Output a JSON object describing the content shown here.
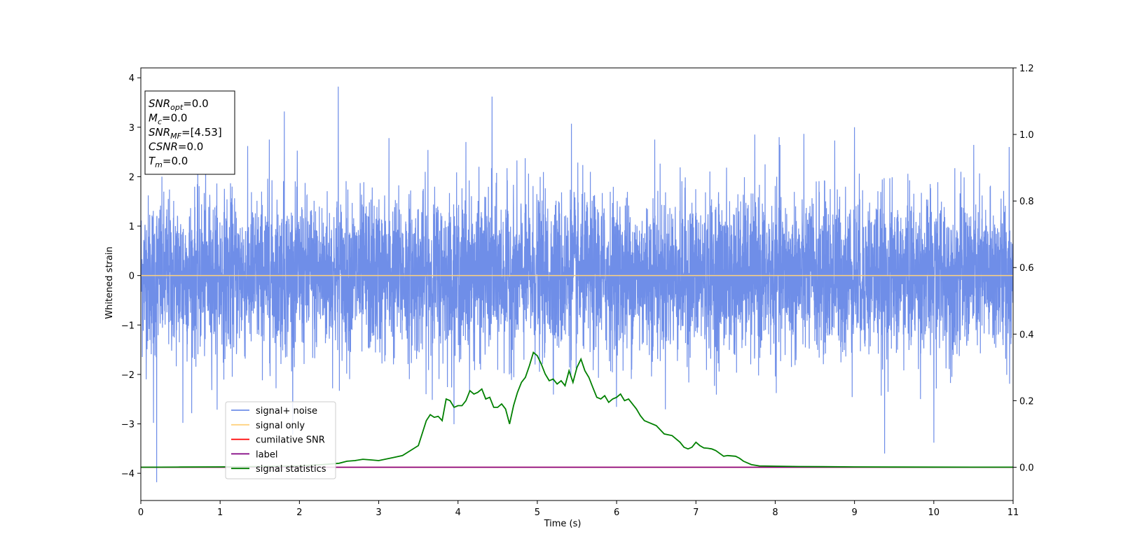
{
  "chart_data": {
    "type": "line",
    "xlabel": "Time (s)",
    "ylabel": "Whitened strain",
    "xlim": [
      0,
      11
    ],
    "ylim": [
      -4.55,
      4.2
    ],
    "y2lim": [
      -0.1,
      1.2
    ],
    "x_ticks": [
      "0",
      "1",
      "2",
      "3",
      "4",
      "5",
      "6",
      "7",
      "8",
      "9",
      "10",
      "11"
    ],
    "y_ticks": [
      "−4",
      "−3",
      "−2",
      "−1",
      "0",
      "1",
      "2",
      "3",
      "4"
    ],
    "y2_ticks": [
      "0.0",
      "0.2",
      "0.4",
      "0.6",
      "0.8",
      "1.0",
      "1.2"
    ],
    "grid": false,
    "legend_position": "lower-left",
    "colors": {
      "noise": "#6f8ee8",
      "signal_only": "#ffd27f",
      "cumulative_snr": "#ff0000",
      "label": "#800080",
      "statistics": "#008000"
    },
    "series": [
      {
        "name": "signal+ noise",
        "axis": "left",
        "style": "dense noise, approx. Gaussian sigma 0.8",
        "spikes": [
          {
            "x": 0.2,
            "y": -4.18
          },
          {
            "x": 0.16,
            "y": -2.98
          },
          {
            "x": 0.53,
            "y": -2.98
          },
          {
            "x": 1.62,
            "y": 2.75
          },
          {
            "x": 1.81,
            "y": 3.32
          },
          {
            "x": 2.49,
            "y": 3.82
          },
          {
            "x": 3.13,
            "y": 2.78
          },
          {
            "x": 3.62,
            "y": 2.54
          },
          {
            "x": 4.1,
            "y": 2.7
          },
          {
            "x": 4.43,
            "y": 3.62
          },
          {
            "x": 5.43,
            "y": 3.07
          },
          {
            "x": 6.48,
            "y": 2.75
          },
          {
            "x": 8.05,
            "y": 2.8
          },
          {
            "x": 8.75,
            "y": 2.73
          },
          {
            "x": 9.0,
            "y": 3.0
          },
          {
            "x": 9.38,
            "y": -3.6
          },
          {
            "x": 10.0,
            "y": -3.38
          },
          {
            "x": 10.95,
            "y": 2.6
          }
        ]
      },
      {
        "name": "signal only",
        "axis": "left",
        "x": [
          0,
          11
        ],
        "y": [
          0,
          0
        ]
      },
      {
        "name": "cumilative SNR",
        "axis": "right",
        "x": [
          0,
          11
        ],
        "y": [
          0,
          0
        ]
      },
      {
        "name": "label",
        "axis": "right",
        "x": [
          0,
          11
        ],
        "y": [
          0,
          0
        ]
      },
      {
        "name": "signal statistics",
        "axis": "right",
        "x": [
          0,
          0.5,
          1.0,
          1.5,
          2.0,
          2.3,
          2.5,
          2.6,
          2.7,
          2.8,
          2.9,
          3.0,
          3.2,
          3.3,
          3.5,
          3.6,
          3.65,
          3.7,
          3.75,
          3.8,
          3.85,
          3.9,
          3.95,
          4.0,
          4.05,
          4.1,
          4.15,
          4.2,
          4.25,
          4.3,
          4.35,
          4.4,
          4.45,
          4.5,
          4.55,
          4.6,
          4.65,
          4.7,
          4.75,
          4.8,
          4.85,
          4.9,
          4.95,
          5.0,
          5.05,
          5.1,
          5.15,
          5.2,
          5.25,
          5.3,
          5.35,
          5.4,
          5.45,
          5.5,
          5.55,
          5.6,
          5.65,
          5.7,
          5.75,
          5.8,
          5.85,
          5.9,
          5.95,
          6.0,
          6.05,
          6.1,
          6.15,
          6.2,
          6.25,
          6.3,
          6.35,
          6.4,
          6.5,
          6.6,
          6.7,
          6.75,
          6.8,
          6.85,
          6.9,
          6.95,
          7.0,
          7.05,
          7.1,
          7.15,
          7.2,
          7.25,
          7.35,
          7.4,
          7.5,
          7.55,
          7.6,
          7.7,
          7.8,
          8.0,
          8.3,
          8.6,
          9.0,
          9.5,
          10.0,
          10.5,
          11.0
        ],
        "y": [
          0.0,
          0.0005,
          0.001,
          0.002,
          0.004,
          0.008,
          0.012,
          0.018,
          0.02,
          0.024,
          0.022,
          0.02,
          0.03,
          0.035,
          0.065,
          0.14,
          0.158,
          0.15,
          0.153,
          0.14,
          0.205,
          0.2,
          0.18,
          0.185,
          0.185,
          0.2,
          0.23,
          0.22,
          0.225,
          0.235,
          0.205,
          0.21,
          0.18,
          0.18,
          0.19,
          0.175,
          0.13,
          0.185,
          0.225,
          0.255,
          0.27,
          0.305,
          0.345,
          0.335,
          0.31,
          0.28,
          0.26,
          0.265,
          0.25,
          0.26,
          0.245,
          0.29,
          0.255,
          0.3,
          0.325,
          0.29,
          0.27,
          0.24,
          0.21,
          0.205,
          0.215,
          0.195,
          0.205,
          0.21,
          0.22,
          0.2,
          0.205,
          0.19,
          0.175,
          0.155,
          0.14,
          0.135,
          0.125,
          0.1,
          0.095,
          0.085,
          0.075,
          0.06,
          0.055,
          0.06,
          0.075,
          0.065,
          0.058,
          0.057,
          0.055,
          0.05,
          0.033,
          0.035,
          0.033,
          0.027,
          0.018,
          0.008,
          0.004,
          0.003,
          0.002,
          0.0015,
          0.001,
          0.0005,
          0.0003,
          0.0002,
          0.0001
        ]
      }
    ]
  },
  "info_box": {
    "lines": [
      {
        "symbol": "SNR",
        "sub": "opt",
        "value": "=0.0"
      },
      {
        "symbol": "M",
        "sub": "c",
        "value": "=0.0"
      },
      {
        "symbol": "SNR",
        "sub": "MF",
        "value": "=[4.53]"
      },
      {
        "symbol": "CSNR",
        "sub": "",
        "value": "=0.0"
      },
      {
        "symbol": "T",
        "sub": "m",
        "value": "=0.0"
      }
    ]
  }
}
